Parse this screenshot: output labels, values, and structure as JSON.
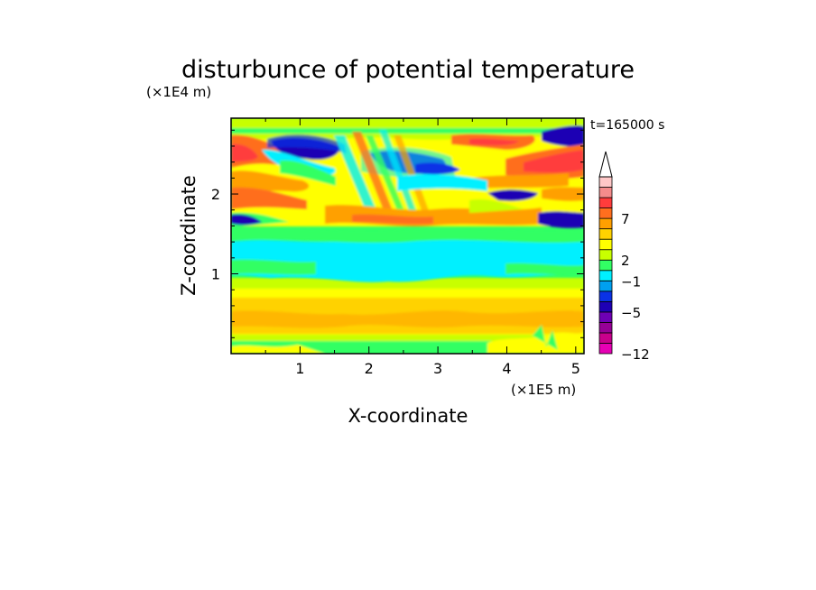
{
  "chart_data": {
    "type": "heatmap",
    "title": "disturbunce of potential temperature",
    "time_label": "t=165000 s",
    "xlabel": "X-coordinate",
    "ylabel": "Z-coordinate",
    "x_unit": "(×1E5 m)",
    "y_unit": "(×1E4 m)",
    "xlim": [
      0,
      5.12
    ],
    "ylim": [
      0,
      2.95
    ],
    "x_ticks": [
      "1",
      "2",
      "3",
      "4",
      "5"
    ],
    "y_ticks": [
      "1",
      "2"
    ],
    "colorbar": {
      "colors": [
        "#e600b4",
        "#c8008c",
        "#960096",
        "#6e00b4",
        "#1e00b4",
        "#0a32e6",
        "#00a0f0",
        "#00f0ff",
        "#32ff64",
        "#c8ff00",
        "#ffff00",
        "#ffd200",
        "#ffa000",
        "#ff6e1e",
        "#ff3c3c",
        "#f58c8c",
        "#ffc8c8"
      ],
      "tick_labels": [
        "-12",
        "-5",
        "-1",
        "2",
        "7"
      ],
      "extend": "max"
    },
    "field_bands": [
      {
        "z_range": [
          0.0,
          0.25
        ],
        "dominant": "yellow/green mix"
      },
      {
        "z_range": [
          0.25,
          0.75
        ],
        "dominant": "light orange"
      },
      {
        "z_range": [
          0.75,
          1.05
        ],
        "dominant": "green"
      },
      {
        "z_range": [
          1.05,
          1.55
        ],
        "dominant": "cyan"
      },
      {
        "z_range": [
          1.55,
          2.95
        ],
        "dominant": "alternating orange/red and blue tilted wave bands"
      }
    ]
  }
}
